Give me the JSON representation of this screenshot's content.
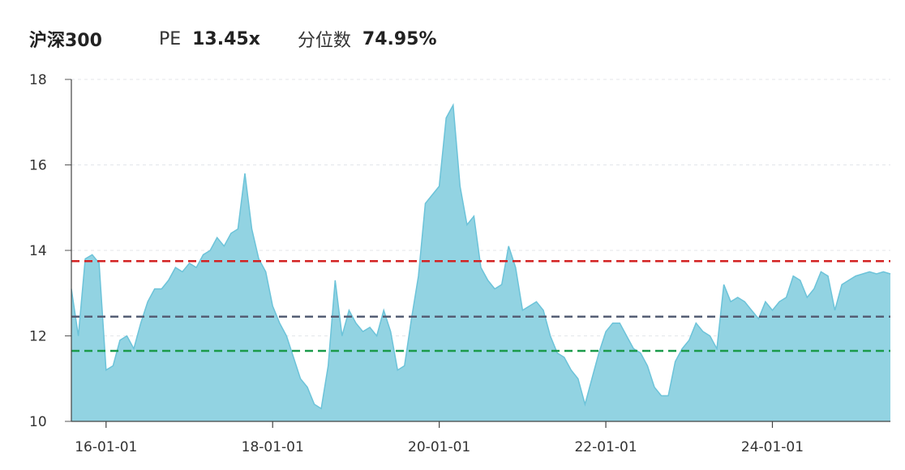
{
  "header": {
    "index_name": "沪深300",
    "pe_label": "PE",
    "pe_value": "13.45x",
    "percentile_label": "分位数",
    "percentile_value": "74.95%"
  },
  "chart_data": {
    "type": "area",
    "x_unit": "month",
    "x_range": [
      "2015-08",
      "2025-06"
    ],
    "ylim": [
      10,
      18
    ],
    "yticks": [
      "10",
      "12",
      "14",
      "16",
      "18"
    ],
    "xticks": [
      {
        "at": "2016-01",
        "label": "16-01-01"
      },
      {
        "at": "2018-01",
        "label": "18-01-01"
      },
      {
        "at": "2020-01",
        "label": "20-01-01"
      },
      {
        "at": "2022-01",
        "label": "22-01-01"
      },
      {
        "at": "2024-01",
        "label": "24-01-01"
      }
    ],
    "grid": "horizontal-dashed",
    "fill_color": "#92d3e2",
    "line_color": "#6cc3d9",
    "reference_lines": [
      {
        "name": "high",
        "value": 13.75,
        "color": "#d32222"
      },
      {
        "name": "median",
        "value": 12.45,
        "color": "#555e74"
      },
      {
        "name": "low",
        "value": 11.65,
        "color": "#1a9a4a"
      }
    ],
    "series": [
      {
        "x": [
          "2015-08",
          "2015-09",
          "2015-10",
          "2015-11",
          "2015-12",
          "2016-01",
          "2016-02",
          "2016-03",
          "2016-04",
          "2016-05",
          "2016-06",
          "2016-07",
          "2016-08",
          "2016-09",
          "2016-10",
          "2016-11",
          "2016-12",
          "2017-01",
          "2017-02",
          "2017-03",
          "2017-04",
          "2017-05",
          "2017-06",
          "2017-07",
          "2017-08",
          "2017-09",
          "2017-10",
          "2017-11",
          "2017-12",
          "2018-01",
          "2018-02",
          "2018-03",
          "2018-04",
          "2018-05",
          "2018-06",
          "2018-07",
          "2018-08",
          "2018-09",
          "2018-10",
          "2018-11",
          "2018-12",
          "2019-01",
          "2019-02",
          "2019-03",
          "2019-04",
          "2019-05",
          "2019-06",
          "2019-07",
          "2019-08",
          "2019-09",
          "2019-10",
          "2019-11",
          "2019-12",
          "2020-01",
          "2020-02",
          "2020-03",
          "2020-04",
          "2020-05",
          "2020-06",
          "2020-07",
          "2020-08",
          "2020-09",
          "2020-10",
          "2020-11",
          "2020-12",
          "2021-01",
          "2021-02",
          "2021-03",
          "2021-04",
          "2021-05",
          "2021-06",
          "2021-07",
          "2021-08",
          "2021-09",
          "2021-10",
          "2021-11",
          "2021-12",
          "2022-01",
          "2022-02",
          "2022-03",
          "2022-04",
          "2022-05",
          "2022-06",
          "2022-07",
          "2022-08",
          "2022-09",
          "2022-10",
          "2022-11",
          "2022-12",
          "2023-01",
          "2023-02",
          "2023-03",
          "2023-04",
          "2023-05",
          "2023-06",
          "2023-07",
          "2023-08",
          "2023-09",
          "2023-10",
          "2023-11",
          "2023-12",
          "2024-01",
          "2024-02",
          "2024-03",
          "2024-04",
          "2024-05",
          "2024-06",
          "2024-07",
          "2024-08",
          "2024-09",
          "2024-10",
          "2024-11",
          "2024-12",
          "2025-01",
          "2025-02",
          "2025-03",
          "2025-04",
          "2025-05",
          "2025-06"
        ],
        "y": [
          13.1,
          12.0,
          13.8,
          13.9,
          13.7,
          11.2,
          11.3,
          11.9,
          12.0,
          11.7,
          12.3,
          12.8,
          13.1,
          13.1,
          13.3,
          13.6,
          13.5,
          13.7,
          13.6,
          13.9,
          14.0,
          14.3,
          14.1,
          14.4,
          14.5,
          15.8,
          14.5,
          13.8,
          13.5,
          12.7,
          12.3,
          12.0,
          11.5,
          11.0,
          10.8,
          10.4,
          10.3,
          11.3,
          13.3,
          12.0,
          12.6,
          12.3,
          12.1,
          12.2,
          12.0,
          12.6,
          12.1,
          11.2,
          11.3,
          12.4,
          13.4,
          15.1,
          15.3,
          15.5,
          17.1,
          17.4,
          15.5,
          14.6,
          14.8,
          13.6,
          13.3,
          13.1,
          13.2,
          14.1,
          13.6,
          12.6,
          12.7,
          12.8,
          12.6,
          12.0,
          11.6,
          11.5,
          11.2,
          11.0,
          10.4,
          11.0,
          11.6,
          12.1,
          12.3,
          12.3,
          12.0,
          11.7,
          11.6,
          11.3,
          10.8,
          10.6,
          10.6,
          11.4,
          11.7,
          11.9,
          12.3,
          12.1,
          12.0,
          11.7,
          13.2,
          12.8,
          12.9,
          12.8,
          12.6,
          12.4,
          12.8,
          12.6,
          12.8,
          12.9,
          13.4,
          13.3,
          12.9,
          13.1,
          13.5,
          13.4,
          12.6,
          13.2,
          13.3,
          13.4,
          13.45,
          13.5,
          13.45,
          13.5,
          13.45
        ]
      }
    ]
  }
}
